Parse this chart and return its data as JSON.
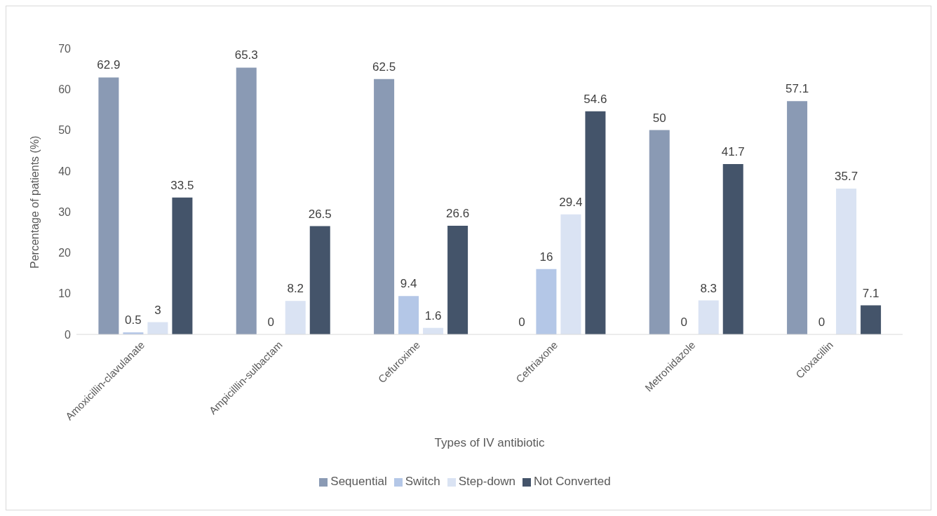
{
  "chart_data": {
    "type": "bar",
    "xlabel": "Types of IV antibiotic",
    "ylabel": "Percentage of patients (%)",
    "categories": [
      "Amoxicillin-clavulanate",
      "Ampicilllin-sulbactam",
      "Cefuroxime",
      "Ceftriaxone",
      "Metronidazole",
      "Cloxacillin"
    ],
    "series": [
      {
        "name": "Sequential",
        "color": "#8a9ab4",
        "values": [
          62.9,
          65.3,
          62.5,
          0,
          50,
          57.1
        ]
      },
      {
        "name": "Switch",
        "color": "#b4c7e7",
        "values": [
          0.5,
          0,
          9.4,
          16,
          0,
          0
        ]
      },
      {
        "name": "Step-down",
        "color": "#dae3f3",
        "values": [
          3,
          8.2,
          1.6,
          29.4,
          8.3,
          35.7
        ]
      },
      {
        "name": "Not Converted",
        "color": "#44546a",
        "values": [
          33.5,
          26.5,
          26.6,
          54.6,
          41.7,
          7.1
        ]
      }
    ],
    "ylim": [
      0,
      70
    ],
    "yticks": [
      0,
      10,
      20,
      30,
      40,
      50,
      60,
      70
    ],
    "grid": false,
    "legend": "bottom",
    "data_labels": true
  }
}
